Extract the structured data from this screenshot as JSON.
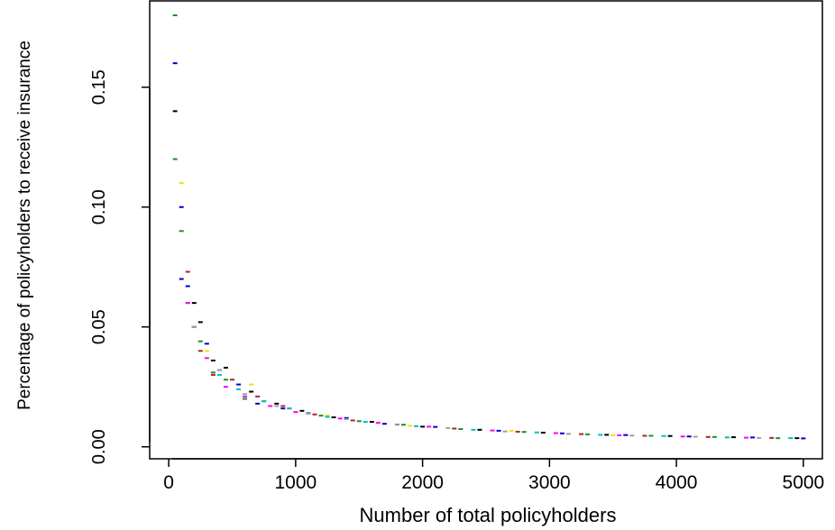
{
  "chart_data": {
    "type": "scatter",
    "xlabel": "Number of total policyholders",
    "ylabel": "Percentage of policyholders to receive insurance",
    "xlim": [
      -150,
      5150
    ],
    "ylim": [
      -0.005,
      0.186
    ],
    "x_ticks": [
      0,
      1000,
      2000,
      3000,
      4000,
      5000
    ],
    "x_tick_labels": [
      "0",
      "1000",
      "2000",
      "3000",
      "4000",
      "5000"
    ],
    "y_ticks": [
      0.0,
      0.05,
      0.1,
      0.15
    ],
    "y_tick_labels": [
      "0.00",
      "0.05",
      "0.10",
      "0.15"
    ],
    "grid": false,
    "legend": "none",
    "series": [
      {
        "color": "#228B22",
        "x": [
          50,
          50,
          100,
          150,
          250,
          350,
          450,
          600,
          750,
          950,
          1200,
          1500,
          1850,
          2300,
          2800,
          3300,
          3800,
          4300,
          4800
        ],
        "y": [
          0.18,
          0.12,
          0.09,
          0.06,
          0.044,
          0.031,
          0.028,
          0.02,
          0.019,
          0.016,
          0.013,
          0.0107,
          0.0092,
          0.0074,
          0.0062,
          0.0052,
          0.0046,
          0.0041,
          0.0036
        ]
      },
      {
        "color": "#0000CD",
        "x": [
          50,
          100,
          100,
          150,
          200,
          300,
          400,
          550,
          700,
          900,
          1100,
          1400,
          1700,
          2100,
          2600,
          3100,
          3600,
          4100,
          4600,
          5000
        ],
        "y": [
          0.16,
          0.1,
          0.07,
          0.067,
          0.05,
          0.043,
          0.032,
          0.026,
          0.018,
          0.016,
          0.014,
          0.012,
          0.0096,
          0.0083,
          0.0067,
          0.0056,
          0.0049,
          0.0043,
          0.0039,
          0.0035
        ]
      },
      {
        "color": "#000000",
        "x": [
          50,
          200,
          250,
          350,
          450,
          650,
          850,
          1050,
          1300,
          1600,
          2000,
          2450,
          2950,
          3450,
          3950,
          4450,
          4950
        ],
        "y": [
          0.14,
          0.06,
          0.052,
          0.036,
          0.033,
          0.023,
          0.018,
          0.015,
          0.0123,
          0.0104,
          0.0084,
          0.0071,
          0.0059,
          0.005,
          0.0045,
          0.004,
          0.0036
        ]
      },
      {
        "color": "#B22222",
        "x": [
          150,
          250,
          350,
          500,
          700,
          900,
          1150,
          1450,
          1800,
          2250,
          2750,
          3250,
          3750,
          4250,
          4750
        ],
        "y": [
          0.073,
          0.04,
          0.03,
          0.028,
          0.021,
          0.017,
          0.0135,
          0.011,
          0.0093,
          0.0076,
          0.0063,
          0.0053,
          0.0046,
          0.0041,
          0.0037
        ]
      },
      {
        "color": "#E6E600",
        "x": [
          100,
          300,
          650,
          1250,
          1900,
          2700,
          3500,
          4400
        ],
        "y": [
          0.11,
          0.04,
          0.026,
          0.013,
          0.0088,
          0.0066,
          0.0049,
          0.0039
        ]
      },
      {
        "color": "#FF00FF",
        "x": [
          150,
          300,
          450,
          600,
          800,
          1000,
          1350,
          1650,
          2050,
          2550,
          3050,
          3550,
          4050,
          4550
        ],
        "y": [
          0.06,
          0.037,
          0.025,
          0.021,
          0.017,
          0.0145,
          0.0118,
          0.01,
          0.0084,
          0.0068,
          0.0057,
          0.0048,
          0.0043,
          0.0038
        ]
      },
      {
        "color": "#00BFBF",
        "x": [
          200,
          400,
          550,
          750,
          950,
          1250,
          1550,
          1950,
          2400,
          2900,
          3400,
          3900,
          4400,
          4900
        ],
        "y": [
          0.05,
          0.03,
          0.024,
          0.019,
          0.016,
          0.0125,
          0.0104,
          0.0086,
          0.0071,
          0.006,
          0.005,
          0.0045,
          0.0039,
          0.0036
        ]
      },
      {
        "color": "#A0A0A0",
        "x": [
          200,
          400,
          600,
          850,
          1100,
          1400,
          1800,
          2200,
          2650,
          3150,
          3650,
          4150,
          4650
        ],
        "y": [
          0.05,
          0.032,
          0.022,
          0.017,
          0.0138,
          0.0115,
          0.0092,
          0.0078,
          0.0064,
          0.0054,
          0.0047,
          0.0042,
          0.0037
        ]
      }
    ]
  }
}
